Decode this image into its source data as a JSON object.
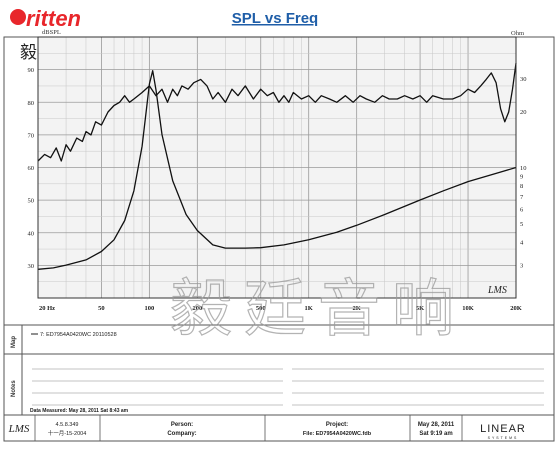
{
  "logo": {
    "brand": "ritten",
    "chinese": "毅廷音响"
  },
  "watermark": "毅廷音响",
  "chart_data": {
    "type": "line",
    "title": "SPL vs Freq",
    "x_scale": "log",
    "xlim": [
      20,
      20000
    ],
    "x_tick_labels": [
      {
        "f": 20,
        "label": "20 Hz"
      },
      {
        "f": 50,
        "label": "50"
      },
      {
        "f": 100,
        "label": "100"
      },
      {
        "f": 200,
        "label": "200"
      },
      {
        "f": 500,
        "label": "500"
      },
      {
        "f": 1000,
        "label": "1K"
      },
      {
        "f": 2000,
        "label": "2K"
      },
      {
        "f": 5000,
        "label": "5K"
      },
      {
        "f": 10000,
        "label": "10K"
      },
      {
        "f": 20000,
        "label": "20K"
      }
    ],
    "y_left": {
      "unit": "dBSPL",
      "lim": [
        20,
        100
      ],
      "ticks": [
        30,
        40,
        50,
        60,
        70,
        80,
        90
      ]
    },
    "y_right": {
      "unit": "Ohm",
      "scale": "log",
      "lim": [
        2,
        50
      ],
      "ticks": [
        2,
        3,
        4,
        5,
        6,
        7,
        8,
        9,
        10,
        20,
        30,
        40,
        50
      ],
      "tick_labels": [
        "",
        "3",
        "4",
        "5",
        "6",
        "7",
        "8",
        "9",
        "10",
        "20",
        "30",
        "",
        ""
      ]
    },
    "grid": true,
    "brand_mark": "LMS",
    "series": [
      {
        "axis": "left",
        "points": [
          [
            20,
            62
          ],
          [
            22,
            64
          ],
          [
            24,
            63
          ],
          [
            26,
            66
          ],
          [
            28,
            62
          ],
          [
            30,
            67
          ],
          [
            32,
            65
          ],
          [
            35,
            69
          ],
          [
            38,
            68
          ],
          [
            40,
            71
          ],
          [
            43,
            70
          ],
          [
            46,
            74
          ],
          [
            50,
            73
          ],
          [
            55,
            77
          ],
          [
            60,
            79
          ],
          [
            65,
            80
          ],
          [
            70,
            82
          ],
          [
            75,
            80
          ],
          [
            80,
            81
          ],
          [
            90,
            83
          ],
          [
            100,
            85
          ],
          [
            110,
            82
          ],
          [
            120,
            84
          ],
          [
            130,
            80
          ],
          [
            140,
            84
          ],
          [
            150,
            82
          ],
          [
            160,
            85
          ],
          [
            175,
            84
          ],
          [
            190,
            86
          ],
          [
            210,
            87
          ],
          [
            230,
            85
          ],
          [
            250,
            81
          ],
          [
            270,
            83
          ],
          [
            300,
            80
          ],
          [
            330,
            84
          ],
          [
            360,
            82
          ],
          [
            400,
            85
          ],
          [
            450,
            81
          ],
          [
            500,
            84
          ],
          [
            550,
            82
          ],
          [
            600,
            83
          ],
          [
            650,
            80
          ],
          [
            700,
            82
          ],
          [
            750,
            80
          ],
          [
            800,
            83
          ],
          [
            900,
            81
          ],
          [
            1000,
            82
          ],
          [
            1100,
            80
          ],
          [
            1200,
            82
          ],
          [
            1350,
            81
          ],
          [
            1500,
            80
          ],
          [
            1700,
            82
          ],
          [
            1900,
            80
          ],
          [
            2100,
            82
          ],
          [
            2300,
            81
          ],
          [
            2600,
            80
          ],
          [
            2900,
            82
          ],
          [
            3200,
            81
          ],
          [
            3600,
            81
          ],
          [
            4000,
            82
          ],
          [
            4500,
            81
          ],
          [
            5000,
            82
          ],
          [
            5500,
            80
          ],
          [
            6000,
            82
          ],
          [
            7000,
            81
          ],
          [
            8000,
            81
          ],
          [
            9000,
            82
          ],
          [
            10000,
            84
          ],
          [
            11000,
            83
          ],
          [
            12000,
            85
          ],
          [
            13000,
            87
          ],
          [
            14000,
            89
          ],
          [
            15000,
            86
          ],
          [
            16000,
            78
          ],
          [
            17000,
            74
          ],
          [
            18000,
            77
          ],
          [
            19000,
            84
          ],
          [
            20000,
            92
          ]
        ]
      },
      {
        "axis": "right",
        "points": [
          [
            20,
            2.85
          ],
          [
            25,
            2.9
          ],
          [
            30,
            3.0
          ],
          [
            40,
            3.2
          ],
          [
            50,
            3.55
          ],
          [
            60,
            4.1
          ],
          [
            70,
            5.2
          ],
          [
            80,
            7.5
          ],
          [
            90,
            13
          ],
          [
            100,
            28
          ],
          [
            105,
            33
          ],
          [
            110,
            26
          ],
          [
            120,
            15
          ],
          [
            140,
            8.5
          ],
          [
            170,
            5.6
          ],
          [
            200,
            4.6
          ],
          [
            250,
            3.85
          ],
          [
            300,
            3.7
          ],
          [
            400,
            3.7
          ],
          [
            500,
            3.72
          ],
          [
            700,
            3.85
          ],
          [
            1000,
            4.1
          ],
          [
            1500,
            4.5
          ],
          [
            2000,
            4.9
          ],
          [
            3000,
            5.6
          ],
          [
            5000,
            6.7
          ],
          [
            7000,
            7.5
          ],
          [
            10000,
            8.4
          ],
          [
            15000,
            9.3
          ],
          [
            20000,
            10
          ]
        ]
      }
    ]
  },
  "map": {
    "label": "Map",
    "legend_entry": "7: ED7954A0420WC  20110528"
  },
  "notes": {
    "label": "Notes",
    "measured": "Data Measured: May 28, 2011  Sat  8:43 am"
  },
  "footer": {
    "version": "4.5.8.349",
    "version_date": "十一月-15-2004",
    "person_label": "Person:",
    "company_label": "Company:",
    "project_label": "Project:",
    "file": "File: ED7954A0420WC.fdb",
    "date": "May 28, 2011",
    "time": "Sat  9:19 am",
    "brand": "LINEAR",
    "brand_sub": "SYSTEMS",
    "lms_mark": "LMS"
  }
}
